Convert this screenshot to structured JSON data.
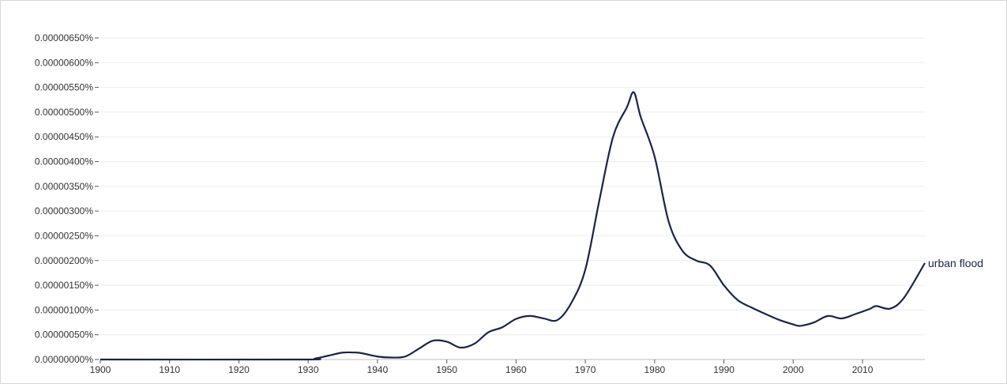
{
  "chart_data": {
    "type": "line",
    "title": "",
    "xlabel": "",
    "ylabel": "",
    "xlim": [
      1900,
      2019
    ],
    "ylim": [
      0,
      6.5e-06
    ],
    "grid": true,
    "legend": "inline-end-of-line",
    "x_ticks": [
      "1900",
      "1910",
      "1920",
      "1930",
      "1940",
      "1950",
      "1960",
      "1970",
      "1980",
      "1990",
      "2000",
      "2010"
    ],
    "y_ticks": [
      "0.00000000%",
      "0.00000050%",
      "0.00000100%",
      "0.00000150%",
      "0.00000200%",
      "0.00000250%",
      "0.00000300%",
      "0.00000350%",
      "0.00000400%",
      "0.00000450%",
      "0.00000500%",
      "0.00000550%",
      "0.00000600%",
      "0.00000650%"
    ],
    "series": [
      {
        "name": "urban flood",
        "color": "#1b2447",
        "x": [
          1900,
          1929,
          1931,
          1933,
          1935,
          1937,
          1938,
          1940,
          1942,
          1944,
          1946,
          1948,
          1950,
          1952,
          1954,
          1956,
          1958,
          1960,
          1962,
          1964,
          1966,
          1968,
          1970,
          1972,
          1974,
          1976,
          1977,
          1978,
          1980,
          1982,
          1984,
          1986,
          1988,
          1990,
          1992,
          1994,
          1996,
          1998,
          2000,
          2001,
          2003,
          2005,
          2007,
          2009,
          2011,
          2012,
          2014,
          2016,
          2019
        ],
        "y": [
          0,
          0,
          2e-08,
          8e-08,
          1.4e-07,
          1.4e-07,
          1.2e-07,
          6e-08,
          4e-08,
          6e-08,
          2.2e-07,
          3.8e-07,
          3.6e-07,
          2.4e-07,
          3.2e-07,
          5.5e-07,
          6.5e-07,
          8.2e-07,
          8.8e-07,
          8.3e-07,
          8e-07,
          1.15e-06,
          1.82e-06,
          3.2e-06,
          4.5e-06,
          5.1e-06,
          5.4e-06,
          4.9e-06,
          4.1e-06,
          2.8e-06,
          2.2e-06,
          2e-06,
          1.9e-06,
          1.5e-06,
          1.2e-06,
          1.05e-06,
          9.2e-07,
          8e-07,
          7.1e-07,
          6.8e-07,
          7.5e-07,
          8.8e-07,
          8.3e-07,
          9.2e-07,
          1.02e-06,
          1.08e-06,
          1.03e-06,
          1.25e-06,
          1.95e-06
        ]
      }
    ]
  }
}
